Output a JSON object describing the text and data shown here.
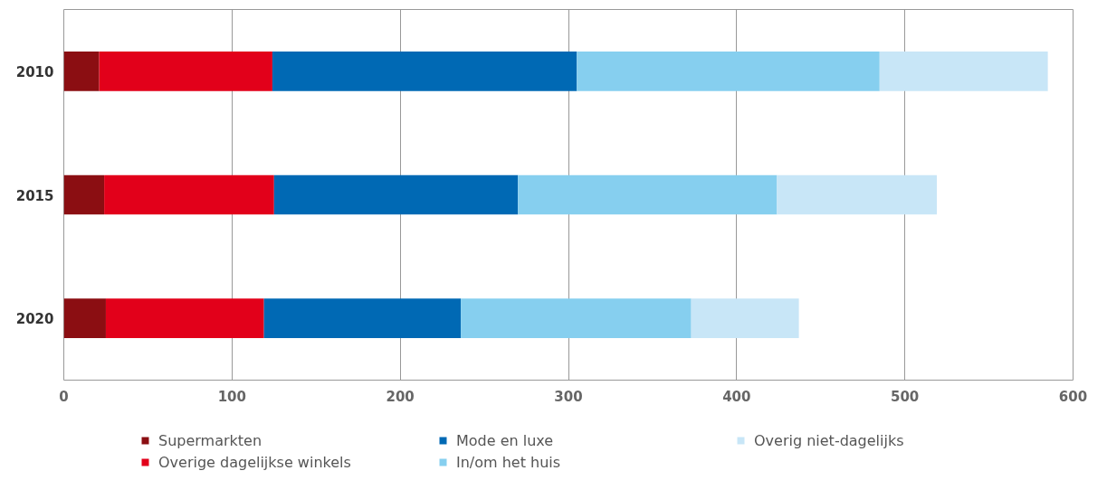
{
  "chart_data": {
    "type": "bar",
    "orientation": "horizontal",
    "stacked": true,
    "categories": [
      "2010",
      "2015",
      "2020"
    ],
    "series": [
      {
        "name": "Supermarkten",
        "color": "#8b0e12",
        "values": [
          21,
          24,
          25
        ]
      },
      {
        "name": "Overige dagelijkse winkels",
        "color": "#e2001a",
        "values": [
          103,
          101,
          94
        ]
      },
      {
        "name": "Mode en luxe",
        "color": "#0069b4",
        "values": [
          181,
          145,
          117
        ]
      },
      {
        "name": "In/om het huis",
        "color": "#86cfef",
        "values": [
          180,
          154,
          137
        ]
      },
      {
        "name": "Overig niet-dagelijks",
        "color": "#c8e6f7",
        "values": [
          100,
          95,
          64
        ]
      }
    ],
    "xlim": [
      0,
      600
    ],
    "xticks": [
      0,
      100,
      200,
      300,
      400,
      500,
      600
    ],
    "grid": "x",
    "legend": "bottom"
  }
}
